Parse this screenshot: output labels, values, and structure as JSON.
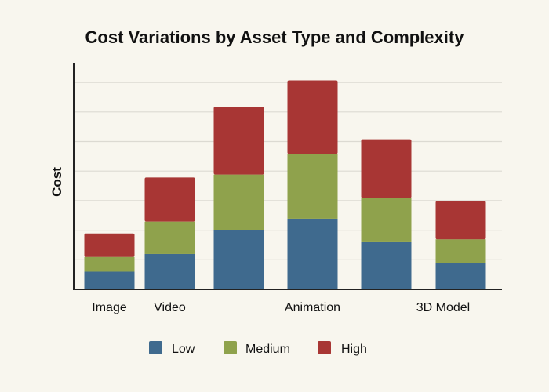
{
  "chart_data": {
    "type": "bar",
    "stacked": true,
    "title": "Cost Variations by Asset Type and Complexity",
    "xlabel": "",
    "ylabel": "Cost",
    "categories": [
      "Image",
      "Video",
      "",
      "Animation",
      "",
      "3D Model"
    ],
    "series": [
      {
        "name": "Low",
        "color": "#3f6a8e",
        "values": [
          0.6,
          1.2,
          2.0,
          2.4,
          1.6,
          0.9
        ]
      },
      {
        "name": "Medium",
        "color": "#8fa24c",
        "values": [
          0.5,
          1.1,
          1.9,
          2.2,
          1.5,
          0.8
        ]
      },
      {
        "name": "High",
        "color": "#a83634",
        "values": [
          0.8,
          1.5,
          2.3,
          2.5,
          2.0,
          1.3
        ]
      }
    ],
    "ylim": [
      0,
      7.7
    ],
    "y_ticks_labeled": false,
    "grid": true,
    "legend": "bottom"
  }
}
